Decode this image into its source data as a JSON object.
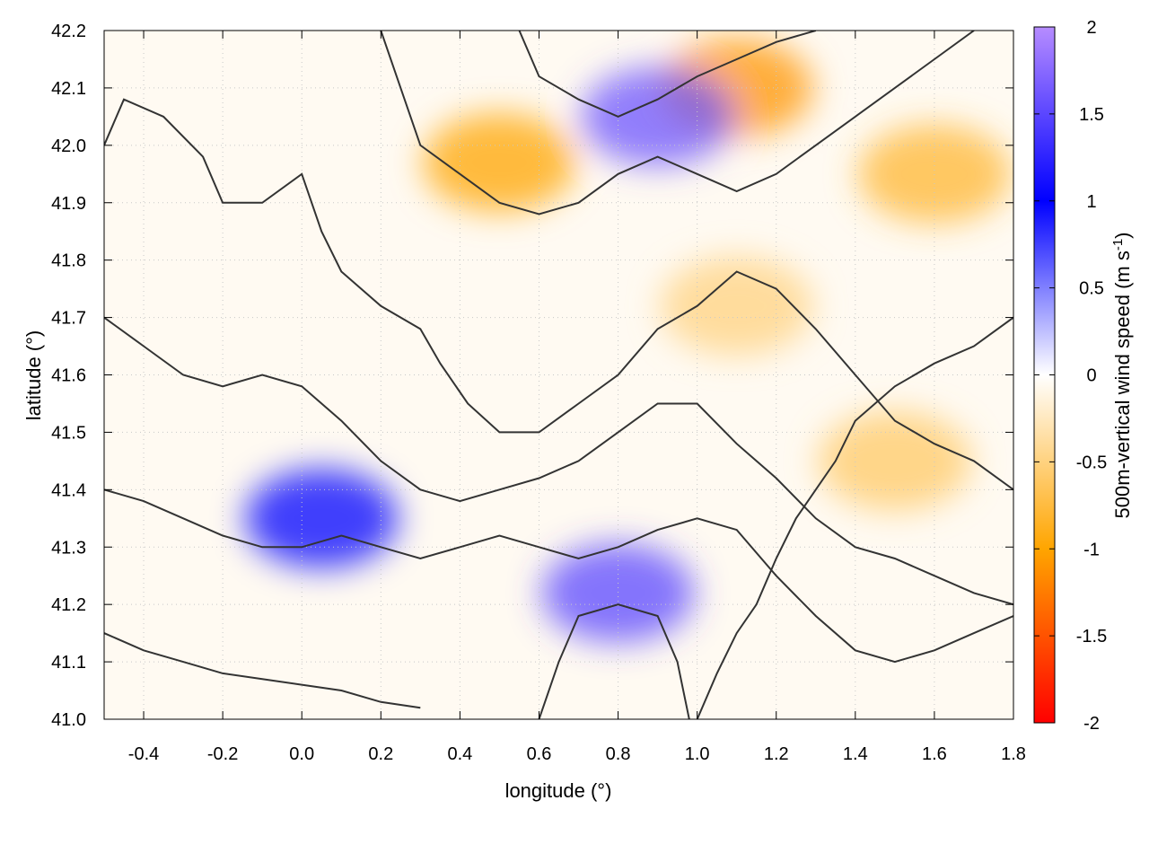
{
  "chart_data": {
    "type": "heatmap",
    "title": "",
    "xlabel": "longitude (°)",
    "ylabel": "latitude (°)",
    "colorbar_label": "500m-vertical wind speed (m s",
    "colorbar_label_exp": "-1",
    "colorbar_label_close": ")",
    "xlim": [
      -0.5,
      1.8
    ],
    "ylim": [
      41.0,
      42.2
    ],
    "x_ticks": [
      -0.4,
      -0.2,
      0.0,
      0.2,
      0.4,
      0.6,
      0.8,
      1.0,
      1.2,
      1.4,
      1.6,
      1.8
    ],
    "x_tick_labels": [
      "-0.4",
      "-0.2",
      "0.0",
      "0.2",
      "0.4",
      "0.6",
      "0.8",
      "1.0",
      "1.2",
      "1.4",
      "1.6",
      "1.8"
    ],
    "y_ticks": [
      41.0,
      41.1,
      41.2,
      41.3,
      41.4,
      41.5,
      41.6,
      41.7,
      41.8,
      41.9,
      42.0,
      42.1,
      42.2
    ],
    "y_tick_labels": [
      "41.0",
      "41.1",
      "41.2",
      "41.3",
      "41.4",
      "41.5",
      "41.6",
      "41.7",
      "41.8",
      "41.9",
      "42.0",
      "42.1",
      "42.2"
    ],
    "colorbar": {
      "range": [
        -2,
        2
      ],
      "ticks": [
        -2,
        -1.5,
        -1,
        -0.5,
        0,
        0.5,
        1,
        1.5,
        2
      ],
      "tick_labels": [
        "-2",
        "-1.5",
        "-1",
        "-0.5",
        "0",
        "0.5",
        "1",
        "1.5",
        "2"
      ],
      "stops": [
        {
          "value": -2,
          "color": "#ff0000"
        },
        {
          "value": -1,
          "color": "#ffa500"
        },
        {
          "value": 0,
          "color": "#ffffff"
        },
        {
          "value": 1,
          "color": "#0000ff"
        },
        {
          "value": 2,
          "color": "#b68cff"
        }
      ]
    },
    "grid": true,
    "field_regions": [
      {
        "name": "downdraft-north",
        "lon": 0.5,
        "lat": 41.97,
        "value": -1.0
      },
      {
        "name": "downdraft-northeast",
        "lon": 1.1,
        "lat": 42.1,
        "value": -1.1
      },
      {
        "name": "downdraft-east",
        "lon": 1.6,
        "lat": 41.95,
        "value": -0.8
      },
      {
        "name": "downdraft-central",
        "lon": 1.1,
        "lat": 41.72,
        "value": -0.5
      },
      {
        "name": "downdraft-southeast",
        "lon": 1.5,
        "lat": 41.45,
        "value": -0.6
      },
      {
        "name": "updraft-coastal-south",
        "lon": 0.8,
        "lat": 41.22,
        "value": 1.5
      },
      {
        "name": "updraft-ridge-north",
        "lon": 0.9,
        "lat": 42.05,
        "value": 1.6
      },
      {
        "name": "updraft-southwest-band",
        "lon": 0.05,
        "lat": 41.35,
        "value": 1.0
      }
    ],
    "contours": [
      [
        [
          -0.5,
          42.0
        ],
        [
          -0.45,
          42.08
        ],
        [
          -0.35,
          42.05
        ],
        [
          -0.25,
          41.98
        ],
        [
          -0.2,
          41.9
        ],
        [
          -0.1,
          41.9
        ],
        [
          0.0,
          41.95
        ],
        [
          0.05,
          41.85
        ],
        [
          0.1,
          41.78
        ],
        [
          0.2,
          41.72
        ],
        [
          0.3,
          41.68
        ],
        [
          0.35,
          41.62
        ],
        [
          0.42,
          41.55
        ],
        [
          0.5,
          41.5
        ],
        [
          0.6,
          41.5
        ],
        [
          0.7,
          41.55
        ],
        [
          0.8,
          41.6
        ],
        [
          0.9,
          41.68
        ],
        [
          1.0,
          41.72
        ],
        [
          1.1,
          41.78
        ],
        [
          1.2,
          41.75
        ],
        [
          1.3,
          41.68
        ],
        [
          1.4,
          41.6
        ],
        [
          1.5,
          41.52
        ],
        [
          1.6,
          41.48
        ],
        [
          1.7,
          41.45
        ],
        [
          1.8,
          41.4
        ]
      ],
      [
        [
          -0.5,
          41.7
        ],
        [
          -0.4,
          41.65
        ],
        [
          -0.3,
          41.6
        ],
        [
          -0.2,
          41.58
        ],
        [
          -0.1,
          41.6
        ],
        [
          0.0,
          41.58
        ],
        [
          0.1,
          41.52
        ],
        [
          0.2,
          41.45
        ],
        [
          0.3,
          41.4
        ],
        [
          0.4,
          41.38
        ],
        [
          0.5,
          41.4
        ],
        [
          0.6,
          41.42
        ],
        [
          0.7,
          41.45
        ],
        [
          0.8,
          41.5
        ],
        [
          0.9,
          41.55
        ],
        [
          1.0,
          41.55
        ],
        [
          1.1,
          41.48
        ],
        [
          1.2,
          41.42
        ],
        [
          1.3,
          41.35
        ],
        [
          1.4,
          41.3
        ],
        [
          1.5,
          41.28
        ],
        [
          1.6,
          41.25
        ],
        [
          1.7,
          41.22
        ],
        [
          1.8,
          41.2
        ]
      ],
      [
        [
          -0.5,
          41.4
        ],
        [
          -0.4,
          41.38
        ],
        [
          -0.3,
          41.35
        ],
        [
          -0.2,
          41.32
        ],
        [
          -0.1,
          41.3
        ],
        [
          0.0,
          41.3
        ],
        [
          0.1,
          41.32
        ],
        [
          0.2,
          41.3
        ],
        [
          0.3,
          41.28
        ],
        [
          0.4,
          41.3
        ],
        [
          0.5,
          41.32
        ],
        [
          0.6,
          41.3
        ],
        [
          0.7,
          41.28
        ],
        [
          0.8,
          41.3
        ],
        [
          0.9,
          41.33
        ],
        [
          1.0,
          41.35
        ],
        [
          1.1,
          41.33
        ],
        [
          1.2,
          41.25
        ],
        [
          1.3,
          41.18
        ],
        [
          1.4,
          41.12
        ],
        [
          1.5,
          41.1
        ],
        [
          1.6,
          41.12
        ],
        [
          1.7,
          41.15
        ],
        [
          1.8,
          41.18
        ]
      ],
      [
        [
          -0.5,
          41.15
        ],
        [
          -0.4,
          41.12
        ],
        [
          -0.3,
          41.1
        ],
        [
          -0.2,
          41.08
        ],
        [
          -0.1,
          41.07
        ],
        [
          0.0,
          41.06
        ],
        [
          0.1,
          41.05
        ],
        [
          0.2,
          41.03
        ],
        [
          0.3,
          41.02
        ]
      ],
      [
        [
          0.2,
          42.2
        ],
        [
          0.25,
          42.1
        ],
        [
          0.3,
          42.0
        ],
        [
          0.4,
          41.95
        ],
        [
          0.5,
          41.9
        ],
        [
          0.6,
          41.88
        ],
        [
          0.7,
          41.9
        ],
        [
          0.8,
          41.95
        ],
        [
          0.9,
          41.98
        ],
        [
          1.0,
          41.95
        ],
        [
          1.1,
          41.92
        ],
        [
          1.2,
          41.95
        ],
        [
          1.3,
          42.0
        ],
        [
          1.4,
          42.05
        ],
        [
          1.5,
          42.1
        ],
        [
          1.6,
          42.15
        ],
        [
          1.7,
          42.2
        ]
      ],
      [
        [
          0.55,
          42.2
        ],
        [
          0.6,
          42.12
        ],
        [
          0.7,
          42.08
        ],
        [
          0.8,
          42.05
        ],
        [
          0.9,
          42.08
        ],
        [
          1.0,
          42.12
        ],
        [
          1.1,
          42.15
        ],
        [
          1.2,
          42.18
        ],
        [
          1.3,
          42.2
        ]
      ],
      [
        [
          0.6,
          41.0
        ],
        [
          0.65,
          41.1
        ],
        [
          0.7,
          41.18
        ],
        [
          0.8,
          41.2
        ],
        [
          0.9,
          41.18
        ],
        [
          0.95,
          41.1
        ],
        [
          0.98,
          41.0
        ]
      ],
      [
        [
          1.0,
          41.0
        ],
        [
          1.05,
          41.08
        ],
        [
          1.1,
          41.15
        ],
        [
          1.15,
          41.2
        ],
        [
          1.2,
          41.28
        ],
        [
          1.25,
          41.35
        ],
        [
          1.3,
          41.4
        ],
        [
          1.35,
          41.45
        ],
        [
          1.4,
          41.52
        ],
        [
          1.5,
          41.58
        ],
        [
          1.6,
          41.62
        ],
        [
          1.7,
          41.65
        ],
        [
          1.8,
          41.7
        ]
      ]
    ]
  }
}
